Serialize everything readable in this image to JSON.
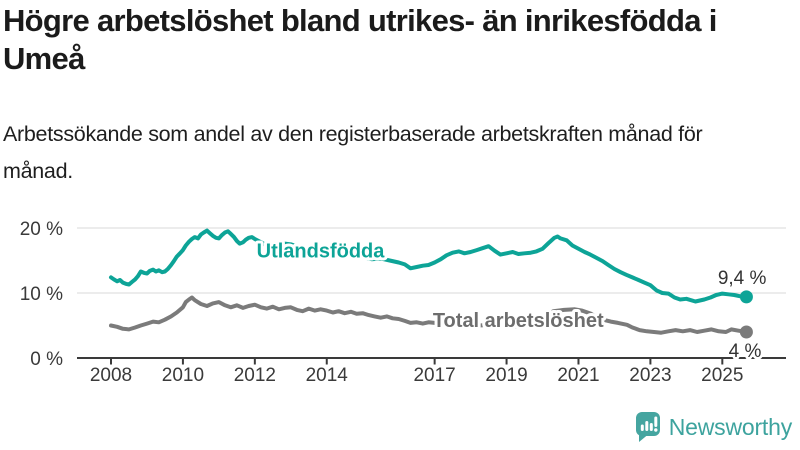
{
  "header": {
    "title": "Högre arbetslöshet bland utrikes- än inrikesfödda i Umeå",
    "subtitle": "Arbetssökande som andel av den registerbaserade arbetskraften månad för månad."
  },
  "theme": {
    "accent_teal": "#0da497",
    "line_gray": "#7b7b7b",
    "label_gray": "#6d6d6d",
    "axis_color": "#3a3a3a",
    "grid_color": "#d8d8d8",
    "end_label_color": "#333333",
    "brand_teal": "#45a5a0"
  },
  "chart_data": {
    "type": "line",
    "title": "Högre arbetslöshet bland utrikes- än inrikesfödda i Umeå",
    "subtitle": "Arbetssökande som andel av den registerbaserade arbetskraften månad för månad.",
    "xlabel": "",
    "ylabel": "",
    "ylim": [
      0,
      22
    ],
    "xlim": [
      2007.1,
      2026.8
    ],
    "grid": "horizontal",
    "legend_position": "inline-labels",
    "x_ticks": [
      {
        "label": "2008",
        "value": 2008
      },
      {
        "label": "2010",
        "value": 2010
      },
      {
        "label": "2012",
        "value": 2012
      },
      {
        "label": "2014",
        "value": 2014
      },
      {
        "label": "2017",
        "value": 2017
      },
      {
        "label": "2019",
        "value": 2019
      },
      {
        "label": "2021",
        "value": 2021
      },
      {
        "label": "2023",
        "value": 2023
      },
      {
        "label": "2025",
        "value": 2025
      }
    ],
    "y_ticks": [
      {
        "label": "0 %",
        "value": 0
      },
      {
        "label": "10 %",
        "value": 10
      },
      {
        "label": "20 %",
        "value": 20
      }
    ],
    "series": [
      {
        "name": "Total arbetslöshet",
        "color": "#7b7b7b",
        "label_color": "#6d6d6d",
        "end_label": "4 %",
        "end_value": 4.0,
        "label_at": [
          2016.95,
          4.75
        ],
        "points": [
          [
            2008.0,
            5.0
          ],
          [
            2008.17,
            4.8
          ],
          [
            2008.33,
            4.5
          ],
          [
            2008.5,
            4.4
          ],
          [
            2008.67,
            4.7
          ],
          [
            2008.83,
            5.0
          ],
          [
            2009.0,
            5.3
          ],
          [
            2009.17,
            5.6
          ],
          [
            2009.33,
            5.5
          ],
          [
            2009.5,
            5.9
          ],
          [
            2009.67,
            6.4
          ],
          [
            2009.83,
            7.0
          ],
          [
            2010.0,
            7.8
          ],
          [
            2010.08,
            8.6
          ],
          [
            2010.17,
            9.0
          ],
          [
            2010.25,
            9.3
          ],
          [
            2010.33,
            8.9
          ],
          [
            2010.5,
            8.3
          ],
          [
            2010.67,
            8.0
          ],
          [
            2010.83,
            8.4
          ],
          [
            2011.0,
            8.6
          ],
          [
            2011.17,
            8.1
          ],
          [
            2011.33,
            7.8
          ],
          [
            2011.5,
            8.1
          ],
          [
            2011.67,
            7.7
          ],
          [
            2011.83,
            8.0
          ],
          [
            2012.0,
            8.2
          ],
          [
            2012.17,
            7.8
          ],
          [
            2012.33,
            7.6
          ],
          [
            2012.5,
            7.9
          ],
          [
            2012.67,
            7.5
          ],
          [
            2012.83,
            7.7
          ],
          [
            2013.0,
            7.8
          ],
          [
            2013.17,
            7.4
          ],
          [
            2013.33,
            7.2
          ],
          [
            2013.5,
            7.6
          ],
          [
            2013.67,
            7.3
          ],
          [
            2013.83,
            7.5
          ],
          [
            2014.0,
            7.3
          ],
          [
            2014.17,
            7.0
          ],
          [
            2014.33,
            7.2
          ],
          [
            2014.5,
            6.9
          ],
          [
            2014.67,
            7.1
          ],
          [
            2014.83,
            6.8
          ],
          [
            2015.0,
            6.9
          ],
          [
            2015.17,
            6.6
          ],
          [
            2015.33,
            6.4
          ],
          [
            2015.5,
            6.2
          ],
          [
            2015.67,
            6.4
          ],
          [
            2015.83,
            6.1
          ],
          [
            2016.0,
            6.0
          ],
          [
            2016.17,
            5.7
          ],
          [
            2016.33,
            5.4
          ],
          [
            2016.5,
            5.5
          ],
          [
            2016.67,
            5.3
          ],
          [
            2016.83,
            5.5
          ],
          [
            2017.0,
            5.4
          ],
          [
            2017.25,
            5.2
          ],
          [
            2017.5,
            5.1
          ],
          [
            2017.75,
            5.3
          ],
          [
            2018.0,
            5.2
          ],
          [
            2018.25,
            5.0
          ],
          [
            2018.5,
            5.1
          ],
          [
            2018.75,
            5.0
          ],
          [
            2019.0,
            5.1
          ],
          [
            2019.25,
            4.9
          ],
          [
            2019.5,
            5.0
          ],
          [
            2019.75,
            5.3
          ],
          [
            2020.1,
            6.5
          ],
          [
            2020.3,
            7.2
          ],
          [
            2020.6,
            7.4
          ],
          [
            2020.9,
            7.5
          ],
          [
            2021.1,
            7.3
          ],
          [
            2021.35,
            6.8
          ],
          [
            2021.6,
            6.0
          ],
          [
            2021.9,
            5.6
          ],
          [
            2022.1,
            5.4
          ],
          [
            2022.35,
            5.1
          ],
          [
            2022.5,
            4.7
          ],
          [
            2022.7,
            4.3
          ],
          [
            2022.9,
            4.1
          ],
          [
            2023.1,
            4.0
          ],
          [
            2023.3,
            3.9
          ],
          [
            2023.5,
            4.1
          ],
          [
            2023.7,
            4.3
          ],
          [
            2023.9,
            4.1
          ],
          [
            2024.1,
            4.3
          ],
          [
            2024.3,
            4.0
          ],
          [
            2024.5,
            4.2
          ],
          [
            2024.7,
            4.4
          ],
          [
            2024.9,
            4.1
          ],
          [
            2025.1,
            4.0
          ],
          [
            2025.25,
            4.4
          ],
          [
            2025.45,
            4.2
          ],
          [
            2025.67,
            4.0
          ]
        ]
      },
      {
        "name": "Utlandsfödda",
        "color": "#0da497",
        "label_color": "#0da497",
        "end_label": "9,4 %",
        "end_value": 9.4,
        "label_at": [
          2012.05,
          15.5
        ],
        "points": [
          [
            2008.0,
            12.4
          ],
          [
            2008.08,
            12.1
          ],
          [
            2008.17,
            11.8
          ],
          [
            2008.25,
            12.0
          ],
          [
            2008.33,
            11.6
          ],
          [
            2008.42,
            11.4
          ],
          [
            2008.5,
            11.3
          ],
          [
            2008.58,
            11.7
          ],
          [
            2008.67,
            12.1
          ],
          [
            2008.75,
            12.6
          ],
          [
            2008.83,
            13.3
          ],
          [
            2008.92,
            13.1
          ],
          [
            2009.0,
            13.0
          ],
          [
            2009.08,
            13.4
          ],
          [
            2009.17,
            13.6
          ],
          [
            2009.25,
            13.3
          ],
          [
            2009.33,
            13.5
          ],
          [
            2009.42,
            13.2
          ],
          [
            2009.5,
            13.3
          ],
          [
            2009.58,
            13.7
          ],
          [
            2009.67,
            14.3
          ],
          [
            2009.75,
            14.9
          ],
          [
            2009.83,
            15.6
          ],
          [
            2009.92,
            16.1
          ],
          [
            2010.0,
            16.6
          ],
          [
            2010.08,
            17.3
          ],
          [
            2010.17,
            17.9
          ],
          [
            2010.25,
            18.3
          ],
          [
            2010.33,
            18.6
          ],
          [
            2010.42,
            18.4
          ],
          [
            2010.5,
            19.0
          ],
          [
            2010.58,
            19.3
          ],
          [
            2010.67,
            19.6
          ],
          [
            2010.75,
            19.2
          ],
          [
            2010.83,
            18.8
          ],
          [
            2010.92,
            18.5
          ],
          [
            2011.0,
            18.4
          ],
          [
            2011.08,
            18.9
          ],
          [
            2011.17,
            19.3
          ],
          [
            2011.25,
            19.5
          ],
          [
            2011.33,
            19.1
          ],
          [
            2011.42,
            18.6
          ],
          [
            2011.5,
            18.0
          ],
          [
            2011.58,
            17.6
          ],
          [
            2011.67,
            17.8
          ],
          [
            2011.75,
            18.2
          ],
          [
            2011.83,
            18.5
          ],
          [
            2011.92,
            18.6
          ],
          [
            2012.0,
            18.3
          ],
          [
            2012.17,
            17.8
          ],
          [
            2012.33,
            17.3
          ],
          [
            2012.5,
            16.7
          ],
          [
            2012.67,
            17.3
          ],
          [
            2012.83,
            17.6
          ],
          [
            2013.0,
            17.5
          ],
          [
            2013.25,
            17.0
          ],
          [
            2013.5,
            16.8
          ],
          [
            2013.75,
            16.4
          ],
          [
            2014.0,
            16.3
          ],
          [
            2014.25,
            16.0
          ],
          [
            2014.5,
            15.9
          ],
          [
            2014.75,
            15.6
          ],
          [
            2015.0,
            15.5
          ],
          [
            2015.25,
            15.2
          ],
          [
            2015.5,
            15.3
          ],
          [
            2015.75,
            15.0
          ],
          [
            2016.0,
            14.7
          ],
          [
            2016.17,
            14.4
          ],
          [
            2016.33,
            13.8
          ],
          [
            2016.5,
            14.0
          ],
          [
            2016.67,
            14.2
          ],
          [
            2016.83,
            14.3
          ],
          [
            2017.0,
            14.7
          ],
          [
            2017.17,
            15.2
          ],
          [
            2017.33,
            15.8
          ],
          [
            2017.5,
            16.2
          ],
          [
            2017.67,
            16.4
          ],
          [
            2017.83,
            16.1
          ],
          [
            2018.0,
            16.3
          ],
          [
            2018.17,
            16.6
          ],
          [
            2018.33,
            16.9
          ],
          [
            2018.5,
            17.2
          ],
          [
            2018.67,
            16.5
          ],
          [
            2018.83,
            15.9
          ],
          [
            2019.0,
            16.1
          ],
          [
            2019.17,
            16.3
          ],
          [
            2019.33,
            16.0
          ],
          [
            2019.5,
            16.1
          ],
          [
            2019.67,
            16.2
          ],
          [
            2019.83,
            16.4
          ],
          [
            2020.0,
            16.8
          ],
          [
            2020.17,
            17.7
          ],
          [
            2020.33,
            18.5
          ],
          [
            2020.42,
            18.7
          ],
          [
            2020.5,
            18.4
          ],
          [
            2020.67,
            18.1
          ],
          [
            2020.83,
            17.3
          ],
          [
            2021.0,
            16.8
          ],
          [
            2021.17,
            16.3
          ],
          [
            2021.33,
            15.9
          ],
          [
            2021.5,
            15.4
          ],
          [
            2021.67,
            14.9
          ],
          [
            2021.83,
            14.3
          ],
          [
            2022.0,
            13.7
          ],
          [
            2022.17,
            13.2
          ],
          [
            2022.33,
            12.8
          ],
          [
            2022.5,
            12.4
          ],
          [
            2022.67,
            12.0
          ],
          [
            2022.83,
            11.6
          ],
          [
            2023.0,
            11.2
          ],
          [
            2023.17,
            10.4
          ],
          [
            2023.33,
            10.0
          ],
          [
            2023.5,
            9.9
          ],
          [
            2023.67,
            9.3
          ],
          [
            2023.83,
            9.0
          ],
          [
            2024.0,
            9.1
          ],
          [
            2024.25,
            8.7
          ],
          [
            2024.5,
            9.0
          ],
          [
            2024.67,
            9.3
          ],
          [
            2024.83,
            9.7
          ],
          [
            2025.0,
            9.9
          ],
          [
            2025.17,
            9.8
          ],
          [
            2025.33,
            9.7
          ],
          [
            2025.5,
            9.5
          ],
          [
            2025.67,
            9.4
          ]
        ]
      }
    ]
  },
  "footer": {
    "brand": "Newsworthy"
  }
}
